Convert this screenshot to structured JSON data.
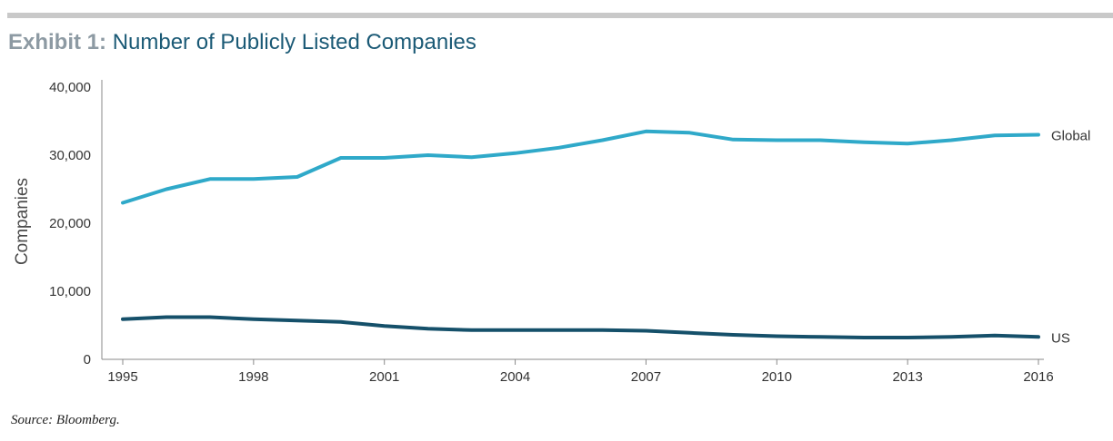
{
  "header": {
    "exhibit": "Exhibit 1:",
    "title": "Number of Publicly Listed Companies"
  },
  "source": "Source: Bloomberg.",
  "colors": {
    "global": "#2fa9c9",
    "us": "#15506a",
    "axis": "#8a8a8a"
  },
  "chart_data": {
    "type": "line",
    "title": "Number of Publicly Listed Companies",
    "xlabel": "",
    "ylabel": "Companies",
    "x": [
      1995,
      1996,
      1997,
      1998,
      1999,
      2000,
      2001,
      2002,
      2003,
      2004,
      2005,
      2006,
      2007,
      2008,
      2009,
      2010,
      2011,
      2012,
      2013,
      2014,
      2015,
      2016
    ],
    "xticks": [
      "1995",
      "1998",
      "2001",
      "2004",
      "2007",
      "2010",
      "2013",
      "2016"
    ],
    "yticks": [
      "0",
      "10,000",
      "20,000",
      "30,000",
      "40,000"
    ],
    "ylim": [
      0,
      40000
    ],
    "grid": false,
    "series": [
      {
        "name": "Global",
        "values": [
          23000,
          25000,
          26500,
          26500,
          26800,
          29600,
          29600,
          30000,
          29700,
          30300,
          31100,
          32200,
          33500,
          33300,
          32300,
          32200,
          32200,
          31900,
          31700,
          32200,
          32900,
          33000
        ]
      },
      {
        "name": "US",
        "values": [
          5900,
          6200,
          6200,
          5900,
          5700,
          5500,
          4900,
          4500,
          4300,
          4300,
          4300,
          4300,
          4200,
          3900,
          3600,
          3400,
          3300,
          3200,
          3200,
          3300,
          3500,
          3300
        ]
      }
    ]
  }
}
